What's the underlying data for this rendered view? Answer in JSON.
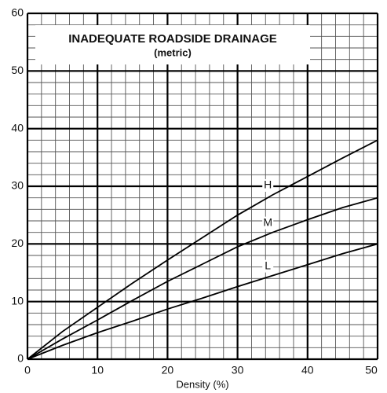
{
  "chart_data": {
    "type": "line",
    "title": "INADEQUATE ROADSIDE DRAINAGE",
    "subtitle": "(metric)",
    "x_label": "Density (%)",
    "x": [
      0,
      5,
      10,
      15,
      20,
      25,
      30,
      35,
      40,
      45,
      50
    ],
    "series": [
      {
        "name": "H",
        "color": "#000000",
        "values": [
          0,
          4.8,
          9,
          13.2,
          17.2,
          21.1,
          25,
          28.5,
          31.7,
          34.9,
          38
        ]
      },
      {
        "name": "M",
        "color": "#000000",
        "values": [
          0,
          3.5,
          6.8,
          10.2,
          13.5,
          16.5,
          19.5,
          22,
          24.2,
          26.3,
          28
        ]
      },
      {
        "name": "L",
        "color": "#000000",
        "values": [
          0,
          2.4,
          4.6,
          6.6,
          8.7,
          10.6,
          12.6,
          14.5,
          16.4,
          18.3,
          20
        ]
      }
    ],
    "xlim": [
      0,
      50
    ],
    "ylim": [
      0,
      60
    ],
    "xticks": [
      0,
      10,
      20,
      30,
      40,
      50
    ],
    "yticks": [
      0,
      10,
      20,
      30,
      40,
      50,
      60
    ],
    "minor_xticks": [
      2,
      4,
      6,
      8,
      12,
      14,
      16,
      18,
      22,
      24,
      26,
      28,
      32,
      34,
      36,
      38,
      42,
      44,
      46,
      48
    ],
    "minor_yticks": [
      2,
      4,
      6,
      8,
      12,
      14,
      16,
      18,
      22,
      24,
      26,
      28,
      32,
      34,
      36,
      38,
      42,
      44,
      46,
      48,
      52,
      54,
      56,
      58
    ],
    "grid": true
  }
}
